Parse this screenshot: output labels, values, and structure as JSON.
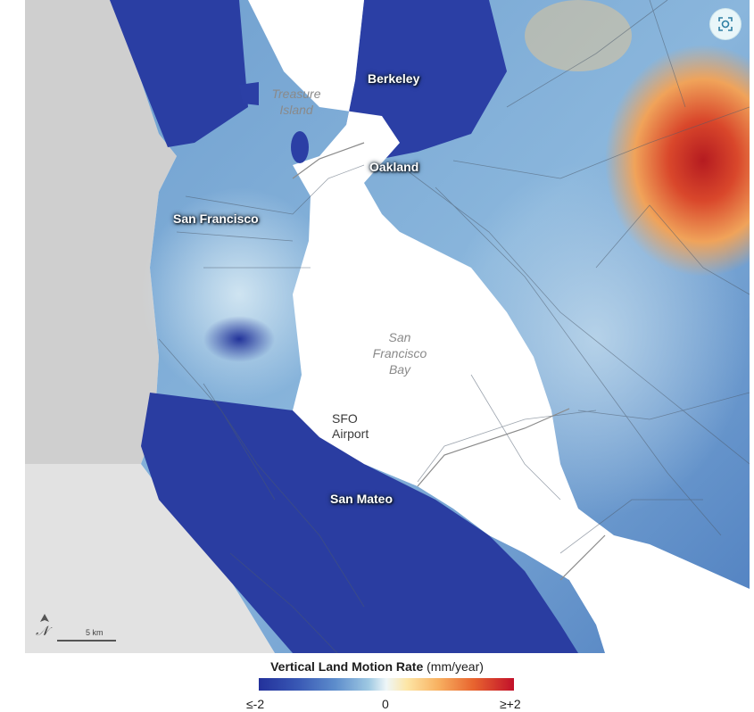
{
  "labels": {
    "berkeley": "Berkeley",
    "treasure_island_1": "Treasure",
    "treasure_island_2": "Island",
    "oakland": "Oakland",
    "san_francisco": "San  Francisco",
    "bay_1": "San",
    "bay_2": "Francisco",
    "bay_3": "Bay",
    "sfo_1": "SFO",
    "sfo_2": "Airport",
    "san_mateo": "San Mateo"
  },
  "scale": {
    "north_symbol": "𝒩",
    "text": "5 km"
  },
  "legend": {
    "title": "Vertical Land Motion Rate",
    "unit": "(mm/year)",
    "min_label": "≤-2",
    "mid_label": "0",
    "max_label": "≥+2",
    "colors": [
      "#23319b",
      "#5d8dcc",
      "#eef6f8",
      "#f8b262",
      "#c2102a"
    ]
  },
  "icons": {
    "lens": "image-lens-icon"
  }
}
